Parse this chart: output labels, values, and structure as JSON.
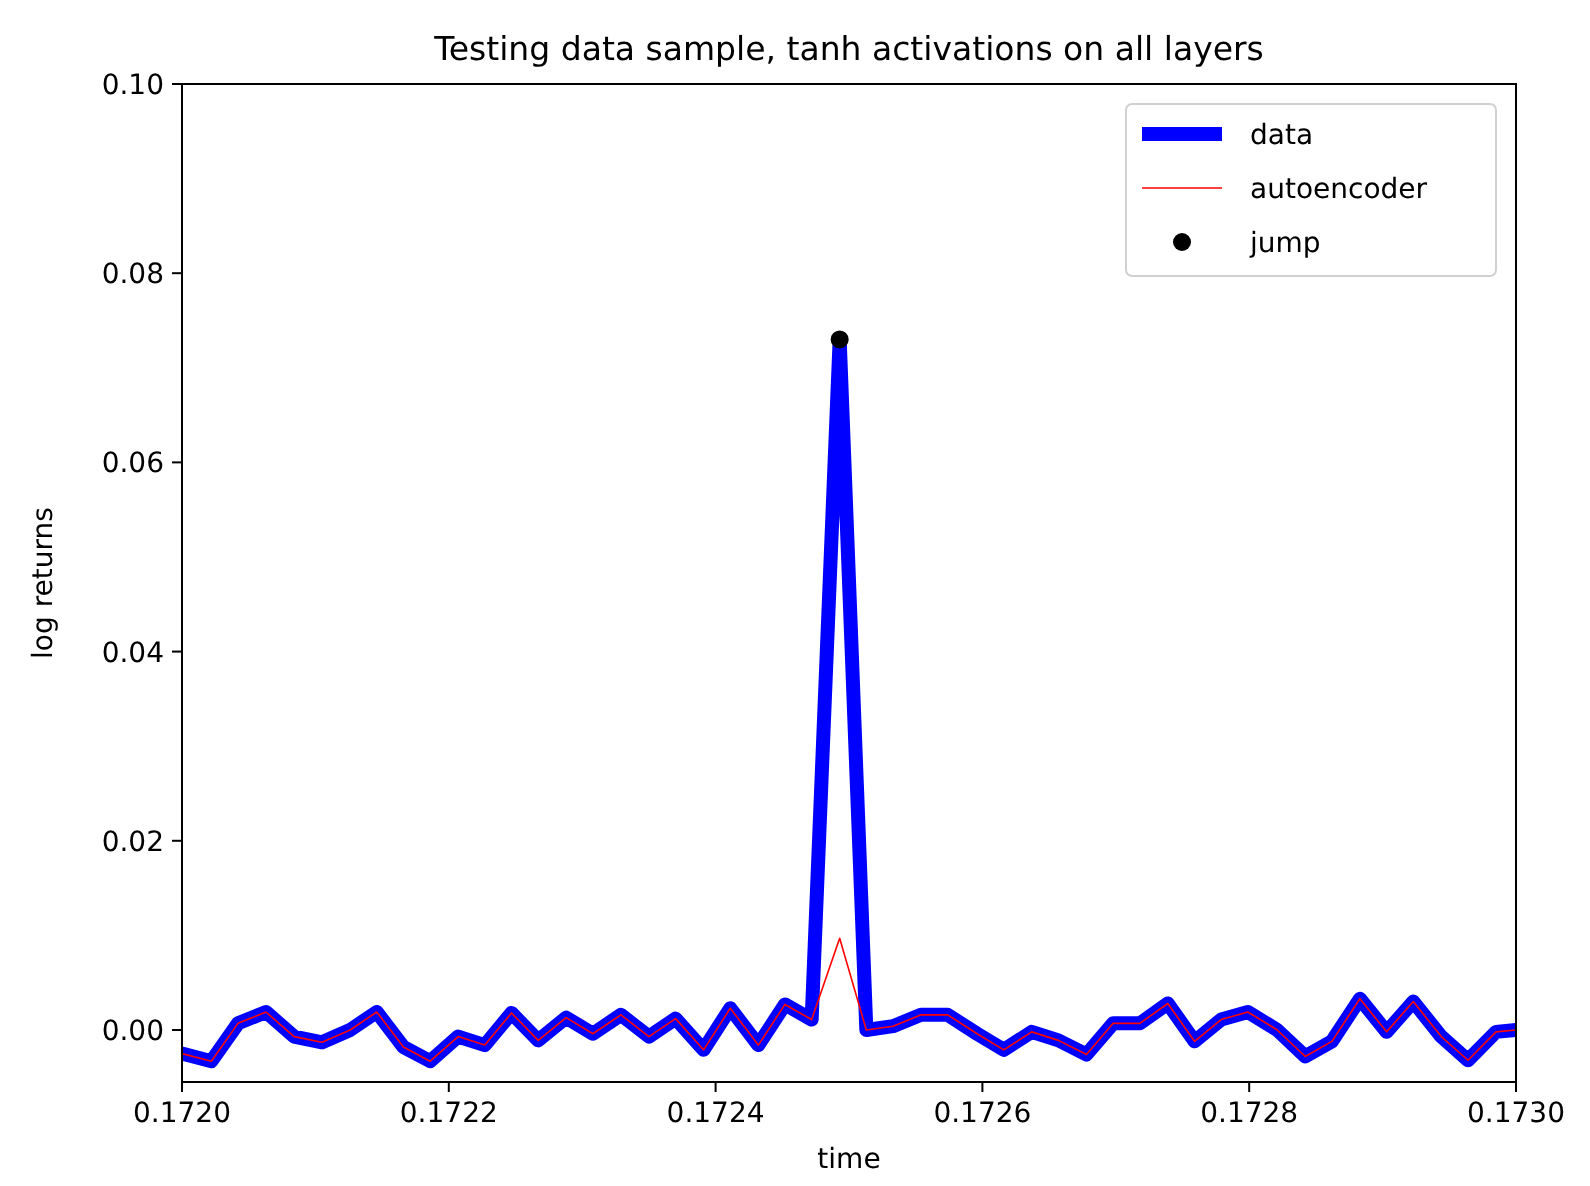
{
  "chart_data": {
    "type": "line",
    "title": "Testing data sample, tanh activations on all layers",
    "xlabel": "time",
    "ylabel": "log returns",
    "xlim": [
      0.172,
      0.173
    ],
    "ylim": [
      -0.0055,
      0.1
    ],
    "xticks": [
      {
        "value": 0.172,
        "label": "0.1720"
      },
      {
        "value": 0.1722,
        "label": "0.1722"
      },
      {
        "value": 0.1724,
        "label": "0.1724"
      },
      {
        "value": 0.1726,
        "label": "0.1726"
      },
      {
        "value": 0.1728,
        "label": "0.1728"
      },
      {
        "value": 0.173,
        "label": "0.1730"
      }
    ],
    "yticks": [
      {
        "value": 0,
        "label": "0.00"
      },
      {
        "value": 0.02,
        "label": "0.02"
      },
      {
        "value": 0.04,
        "label": "0.04"
      },
      {
        "value": 0.06,
        "label": "0.06"
      },
      {
        "value": 0.08,
        "label": "0.08"
      },
      {
        "value": 0.1,
        "label": "0.10"
      }
    ],
    "grid": false,
    "legend": "top right",
    "x": [
      0.172,
      0.172022,
      0.172042,
      0.172063,
      0.172084,
      0.172105,
      0.172126,
      0.172146,
      0.172166,
      0.172186,
      0.172207,
      0.172227,
      0.172247,
      0.172267,
      0.172288,
      0.172308,
      0.172329,
      0.17235,
      0.17237,
      0.172391,
      0.172411,
      0.172432,
      0.172452,
      0.172472,
      0.172493,
      0.172513,
      0.172533,
      0.172554,
      0.172574,
      0.172596,
      0.172616,
      0.172637,
      0.172657,
      0.172678,
      0.172698,
      0.172718,
      0.172739,
      0.172759,
      0.172779,
      0.172799,
      0.172821,
      0.172842,
      0.172862,
      0.172883,
      0.172903,
      0.172923,
      0.172944,
      0.172964,
      0.172985,
      0.173
    ],
    "series": [
      {
        "name": "data",
        "color": "#0000ff",
        "marker": "none",
        "values": [
          -0.0025,
          -0.0033,
          0.0007,
          0.0019,
          -0.0007,
          -0.0013,
          0.0,
          0.0019,
          -0.0018,
          -0.0033,
          -0.0007,
          -0.0016,
          0.0018,
          -0.0011,
          0.0013,
          -0.0004,
          0.0016,
          -0.0007,
          0.0012,
          -0.0021,
          0.0023,
          -0.0016,
          0.0027,
          0.0011,
          0.073,
          0.0,
          0.0004,
          0.0016,
          0.0016,
          -0.0004,
          -0.0021,
          -0.0002,
          -0.0011,
          -0.0026,
          0.0007,
          0.0007,
          0.0028,
          -0.0012,
          0.0011,
          0.0019,
          0.0,
          -0.0028,
          -0.0012,
          0.0033,
          -0.0002,
          0.003,
          -0.0007,
          -0.0032,
          -0.0002,
          0.0
        ]
      },
      {
        "name": "autoencoder",
        "color": "#ff0000",
        "marker": "none",
        "values": [
          -0.0025,
          -0.0033,
          0.0007,
          0.0019,
          -0.0007,
          -0.0013,
          0.0,
          0.0019,
          -0.0018,
          -0.0033,
          -0.0007,
          -0.0016,
          0.0018,
          -0.0011,
          0.0013,
          -0.0004,
          0.0016,
          -0.0007,
          0.0012,
          -0.0021,
          0.0023,
          -0.0016,
          0.0027,
          0.0011,
          0.0097,
          0.0,
          0.0004,
          0.0016,
          0.0016,
          -0.0004,
          -0.0021,
          -0.0002,
          -0.0011,
          -0.0026,
          0.0007,
          0.0007,
          0.0028,
          -0.0012,
          0.0011,
          0.0019,
          0.0,
          -0.0028,
          -0.0012,
          0.0033,
          -0.0002,
          0.003,
          -0.0007,
          -0.0032,
          -0.0002,
          0.0
        ]
      },
      {
        "name": "jump",
        "type": "scatter",
        "color": "#000000",
        "marker": "circle",
        "x": [
          0.172493
        ],
        "values": [
          0.073
        ]
      }
    ]
  }
}
